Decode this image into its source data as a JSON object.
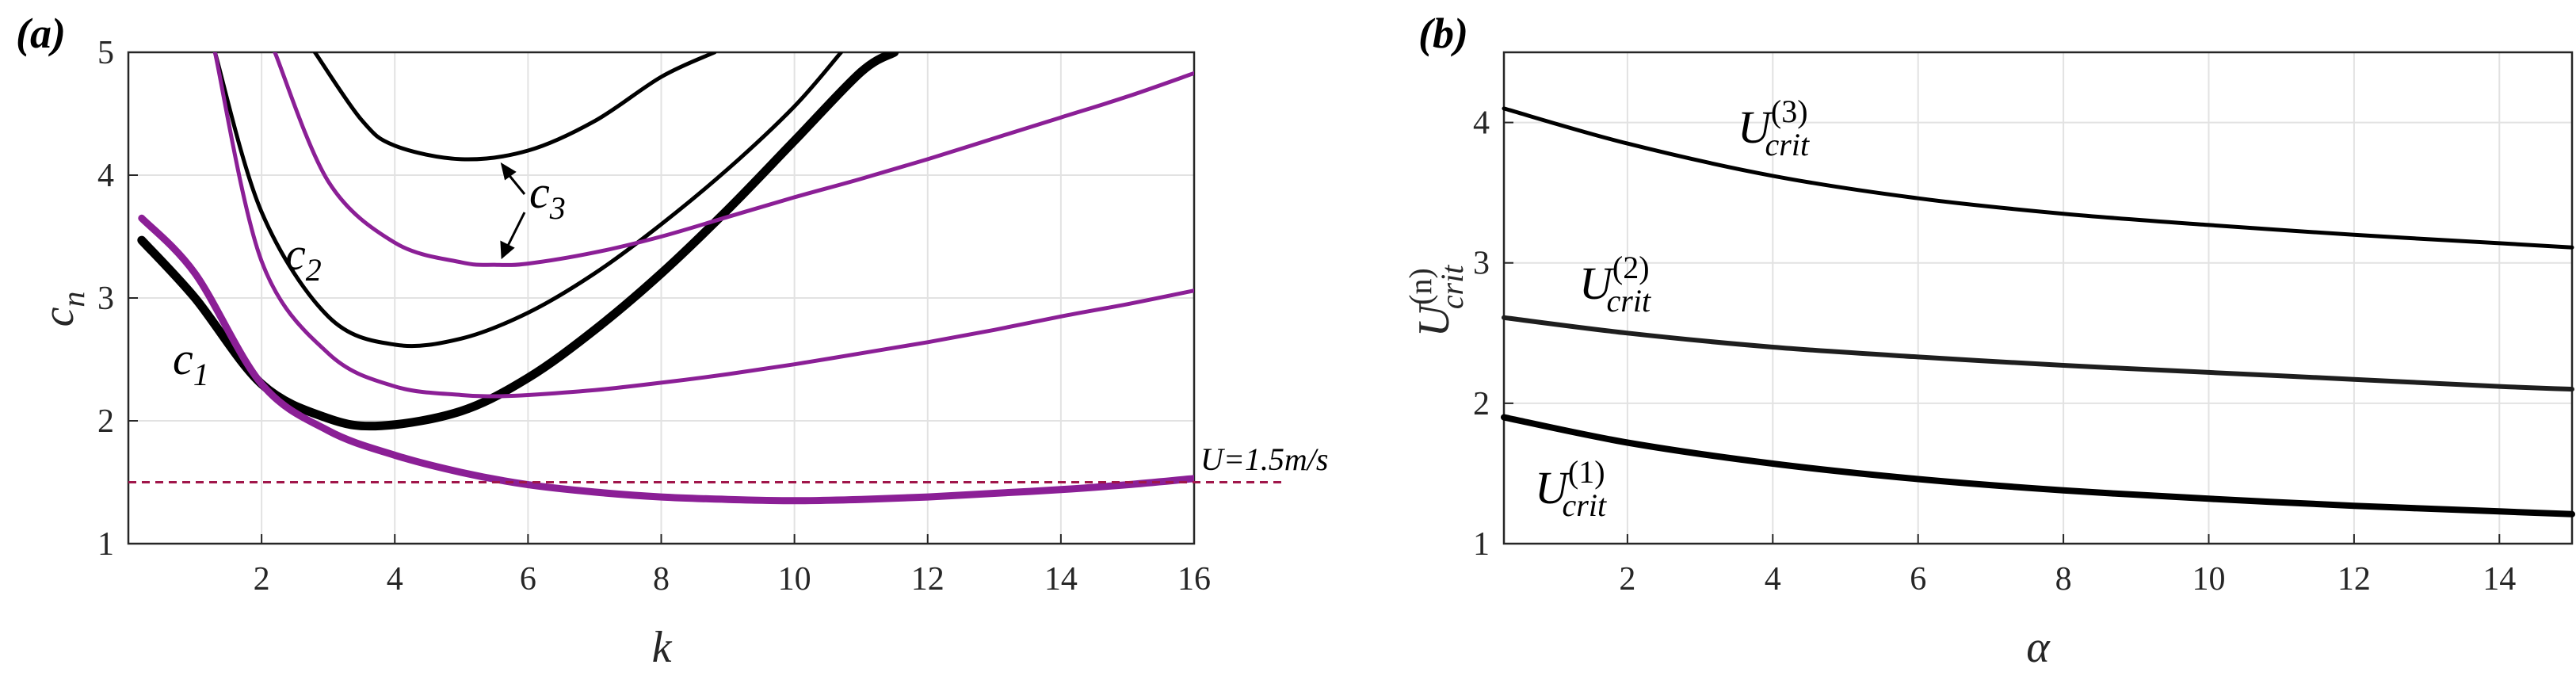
{
  "colors": {
    "black": "#000000",
    "purple": "#8b1f96",
    "dashed": "#a0164a",
    "grid": "#e2e2e2",
    "axis": "#262626"
  },
  "chart_data": [
    {
      "panel": "(a)",
      "type": "line",
      "xlabel": "k",
      "ylabel": "c",
      "ylabel_sub": "n",
      "xlim": [
        0,
        16
      ],
      "ylim": [
        1,
        5
      ],
      "xticks": [
        "2",
        "4",
        "6",
        "8",
        "10",
        "12",
        "14",
        "16"
      ],
      "yticks": [
        "1",
        "2",
        "3",
        "4",
        "5"
      ],
      "reference_line": {
        "y": 1.5,
        "label": "U=1.5m/s"
      },
      "annotations": [
        {
          "base": "c",
          "sub": "1"
        },
        {
          "base": "c",
          "sub": "2"
        },
        {
          "base": "c",
          "sub": "3"
        }
      ],
      "series": [
        {
          "name": "c1 (black)",
          "x": [
            0.2,
            1,
            2,
            3,
            3.8,
            5,
            6,
            7,
            8,
            9,
            10,
            11,
            11.5
          ],
          "y": [
            3.47,
            3.0,
            2.3,
            2.02,
            1.96,
            2.08,
            2.35,
            2.74,
            3.2,
            3.72,
            4.28,
            4.84,
            5.0
          ]
        },
        {
          "name": "c1 (purple)",
          "x": [
            0.2,
            1,
            2,
            3,
            4,
            5,
            6,
            7,
            8,
            9,
            10,
            11,
            12,
            13,
            14,
            15,
            16
          ],
          "y": [
            3.65,
            3.2,
            2.3,
            1.92,
            1.72,
            1.58,
            1.48,
            1.42,
            1.38,
            1.36,
            1.35,
            1.36,
            1.38,
            1.41,
            1.44,
            1.48,
            1.53
          ]
        },
        {
          "name": "c2 (black)",
          "x": [
            1.3,
            2,
            3,
            4,
            5,
            6,
            7,
            8,
            9,
            10,
            10.7
          ],
          "y": [
            5.0,
            3.7,
            2.85,
            2.62,
            2.67,
            2.88,
            3.2,
            3.6,
            4.05,
            4.56,
            5.0
          ]
        },
        {
          "name": "c2 (purple)",
          "x": [
            1.3,
            2,
            3,
            4,
            5,
            5.5,
            6,
            7,
            8,
            9,
            10,
            11,
            12,
            13,
            14,
            15,
            16
          ],
          "y": [
            5.0,
            3.3,
            2.55,
            2.28,
            2.21,
            2.2,
            2.21,
            2.25,
            2.31,
            2.38,
            2.46,
            2.55,
            2.64,
            2.74,
            2.85,
            2.95,
            3.06
          ]
        },
        {
          "name": "c3 (black)",
          "x": [
            2.8,
            3.5,
            4,
            5,
            6,
            7,
            8,
            8.8
          ],
          "y": [
            5.0,
            4.45,
            4.24,
            4.13,
            4.2,
            4.44,
            4.8,
            5.0
          ]
        },
        {
          "name": "c3 (purple)",
          "x": [
            2.2,
            3,
            4,
            5,
            5.5,
            6,
            7,
            8,
            9,
            10,
            11,
            12,
            13,
            14,
            15,
            16
          ],
          "y": [
            5.0,
            3.95,
            3.45,
            3.29,
            3.27,
            3.28,
            3.37,
            3.5,
            3.66,
            3.82,
            3.97,
            4.13,
            4.3,
            4.47,
            4.64,
            4.83
          ]
        }
      ]
    },
    {
      "panel": "(b)",
      "type": "line",
      "xlabel": "α",
      "ylabel": "U",
      "ylabel_sub": "crit",
      "ylabel_sup": "(n)",
      "xlim": [
        0.3,
        15
      ],
      "ylim": [
        1,
        4.5
      ],
      "xticks": [
        "2",
        "4",
        "6",
        "8",
        "10",
        "12",
        "14"
      ],
      "yticks": [
        "1",
        "2",
        "3",
        "4"
      ],
      "annotations": [
        {
          "base": "U",
          "sub": "crit",
          "sup": "(1)"
        },
        {
          "base": "U",
          "sub": "crit",
          "sup": "(2)"
        },
        {
          "base": "U",
          "sub": "crit",
          "sup": "(3)"
        }
      ],
      "series": [
        {
          "name": "U_crit^(1)",
          "x": [
            0.3,
            2,
            4,
            6,
            8,
            10,
            12,
            14,
            15
          ],
          "y": [
            1.9,
            1.72,
            1.57,
            1.46,
            1.38,
            1.32,
            1.27,
            1.23,
            1.21
          ]
        },
        {
          "name": "U_crit^(2)",
          "x": [
            0.3,
            2,
            4,
            6,
            8,
            10,
            12,
            14,
            15
          ],
          "y": [
            2.61,
            2.5,
            2.4,
            2.33,
            2.27,
            2.22,
            2.17,
            2.12,
            2.1
          ]
        },
        {
          "name": "U_crit^(3)",
          "x": [
            0.3,
            2,
            4,
            6,
            8,
            10,
            12,
            14,
            15
          ],
          "y": [
            4.1,
            3.85,
            3.62,
            3.46,
            3.35,
            3.27,
            3.2,
            3.14,
            3.11
          ]
        }
      ]
    }
  ]
}
